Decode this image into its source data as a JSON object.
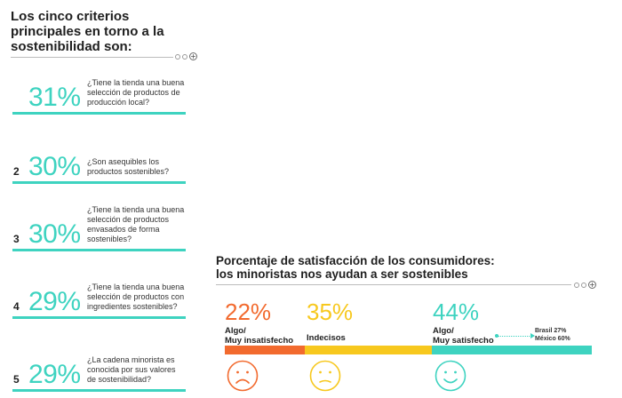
{
  "left_panel": {
    "title": "Los cinco criterios principales en torno a la sostenibilidad son:",
    "criteria": [
      {
        "rank": "",
        "percent": "31%",
        "text": "¿Tiene la tienda una buena selección de productos de producción local?"
      },
      {
        "rank": "2",
        "percent": "30%",
        "text": "¿Son asequibles los productos sostenibles?"
      },
      {
        "rank": "3",
        "percent": "30%",
        "text": "¿Tiene la tienda una buena selección de productos envasados de forma sostenibles?"
      },
      {
        "rank": "4",
        "percent": "29%",
        "text": "¿Tiene la tienda una buena selección de productos con ingredientes sostenibles?"
      },
      {
        "rank": "5",
        "percent": "29%",
        "text": "¿La cadena minorista es conocida por sus valores de sostenibilidad?"
      }
    ]
  },
  "right_panel": {
    "title_line1": "Porcentaje de satisfacción de los consumidores:",
    "title_line2": "los minoristas nos ayudan a ser sostenibles",
    "segments": [
      {
        "percent": "22%",
        "label_line1": "Algo/",
        "label_line2": "Muy insatisfecho",
        "color": "#f26a2e",
        "share": 0.22
      },
      {
        "percent": "35%",
        "label_line1": "Indecisos",
        "label_line2": "",
        "color": "#f7c81e",
        "share": 0.35
      },
      {
        "percent": "44%",
        "label_line1": "Algo/",
        "label_line2": "Muy satisfecho",
        "color": "#3ed3c0",
        "share": 0.44
      }
    ],
    "note_line1": "Brasil 27%",
    "note_line2": "México 60%"
  },
  "colors": {
    "accent": "#3ed3c0",
    "orange": "#f26a2e",
    "yellow": "#f7c81e"
  }
}
